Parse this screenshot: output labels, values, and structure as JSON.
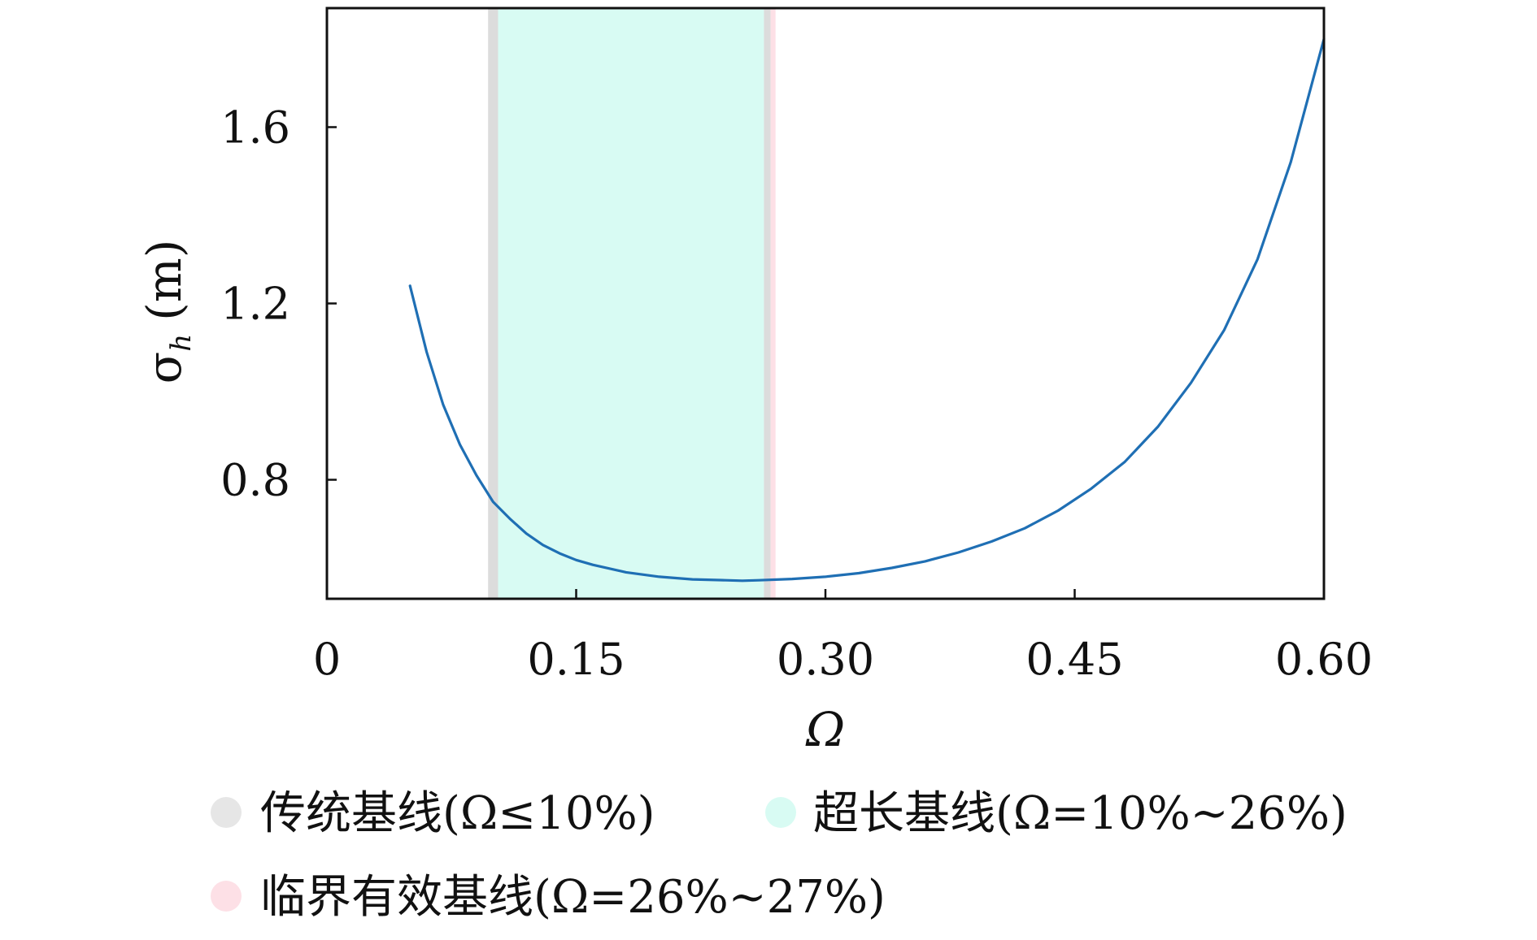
{
  "chart_data": {
    "type": "line",
    "title": "",
    "xlabel": "Ω",
    "ylabel": "σ",
    "ylabel_subscript": "h",
    "ylabel_unit": "(m)",
    "xlim": [
      0,
      0.6
    ],
    "ylim": [
      0.53,
      1.87
    ],
    "xticks": [
      {
        "value": 0,
        "label": "0"
      },
      {
        "value": 0.15,
        "label": "0.15"
      },
      {
        "value": 0.3,
        "label": "0.30"
      },
      {
        "value": 0.45,
        "label": "0.45"
      },
      {
        "value": 0.6,
        "label": "0.60"
      }
    ],
    "yticks": [
      {
        "value": 0.8,
        "label": "0.8"
      },
      {
        "value": 1.2,
        "label": "1.2"
      },
      {
        "value": 1.6,
        "label": "1.6"
      }
    ],
    "grid": false,
    "series": [
      {
        "color": "#1f6fb4",
        "x": [
          0.05,
          0.06,
          0.07,
          0.08,
          0.09,
          0.1,
          0.11,
          0.12,
          0.13,
          0.14,
          0.15,
          0.16,
          0.18,
          0.2,
          0.22,
          0.24,
          0.25,
          0.26,
          0.28,
          0.3,
          0.32,
          0.34,
          0.36,
          0.38,
          0.4,
          0.42,
          0.44,
          0.46,
          0.48,
          0.5,
          0.52,
          0.54,
          0.56,
          0.58,
          0.6
        ],
        "y": [
          1.24,
          1.09,
          0.97,
          0.88,
          0.81,
          0.75,
          0.712,
          0.678,
          0.652,
          0.633,
          0.618,
          0.607,
          0.59,
          0.58,
          0.574,
          0.572,
          0.571,
          0.572,
          0.575,
          0.58,
          0.588,
          0.6,
          0.615,
          0.635,
          0.66,
          0.69,
          0.73,
          0.78,
          0.84,
          0.92,
          1.02,
          1.14,
          1.3,
          1.52,
          1.8
        ]
      }
    ],
    "bands": [
      {
        "x_from": 0.097,
        "x_to": 0.103,
        "color": "#dcdcdc"
      },
      {
        "x_from": 0.103,
        "x_to": 0.263,
        "color": "#d8fbf3"
      },
      {
        "x_from": 0.263,
        "x_to": 0.267,
        "color": "#dcdcdc"
      },
      {
        "x_from": 0.267,
        "x_to": 0.27,
        "color": "#fde0e6"
      }
    ],
    "legend": {
      "placement": "bottom",
      "items": [
        {
          "label": "传统基线(Ω≤10%)",
          "color": "#e6e6e6"
        },
        {
          "label": "超长基线(Ω=10%~26%)",
          "color": "#d8fbf3"
        },
        {
          "label": "临界有效基线(Ω=26%~27%)",
          "color": "#fde0e6"
        }
      ]
    }
  }
}
